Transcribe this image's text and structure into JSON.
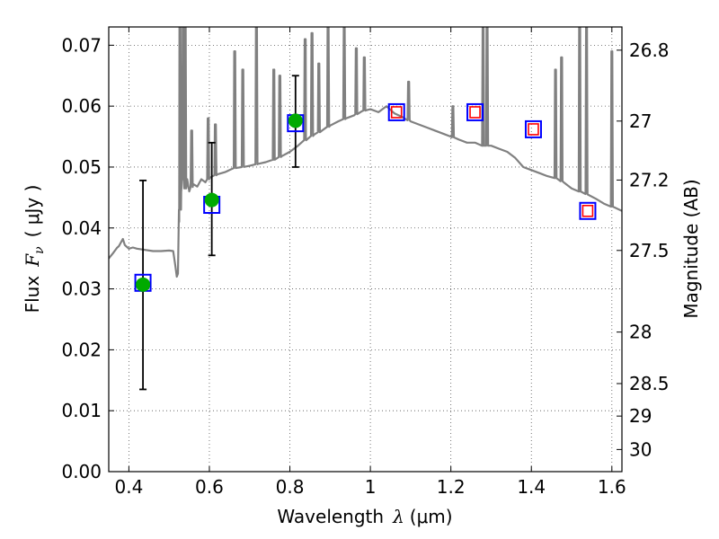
{
  "chart_data": {
    "type": "line",
    "title": "",
    "xlabel_text": "Wavelength",
    "xlabel_symbol": "λ",
    "xlabel_unit": "(μm)",
    "ylabel_text": "Flux",
    "ylabel_symbol": "F",
    "ylabel_subscript": "ν",
    "ylabel_unit": "( μJy )",
    "ylabel_right": "Magnitude (AB)",
    "xlim": [
      0.35,
      1.625
    ],
    "ylim": [
      0.0,
      0.073
    ],
    "grid": true,
    "x_ticks": [
      0.4,
      0.6,
      0.8,
      1.0,
      1.2,
      1.4,
      1.6
    ],
    "x_tick_labels": [
      "0.4",
      "0.6",
      "0.8",
      "1",
      "1.2",
      "1.4",
      "1.6"
    ],
    "y_ticks": [
      0.0,
      0.01,
      0.02,
      0.03,
      0.04,
      0.05,
      0.06,
      0.07
    ],
    "y_tick_labels": [
      "0.00",
      "0.01",
      "0.02",
      "0.03",
      "0.04",
      "0.05",
      "0.06",
      "0.07"
    ],
    "right_ticks": [
      {
        "value": 26.8,
        "label": "26.8"
      },
      {
        "value": 27.0,
        "label": "27"
      },
      {
        "value": 27.2,
        "label": "27.2"
      },
      {
        "value": 27.5,
        "label": "27.5"
      },
      {
        "value": 28.0,
        "label": "28"
      },
      {
        "value": 28.5,
        "label": "28.5"
      },
      {
        "value": 29.0,
        "label": "29"
      },
      {
        "value": 30.0,
        "label": "30"
      }
    ],
    "series": [
      {
        "name": "model-spectrum",
        "kind": "line",
        "color": "#808080",
        "points": [
          [
            0.35,
            0.035
          ],
          [
            0.36,
            0.0358
          ],
          [
            0.37,
            0.0367
          ],
          [
            0.375,
            0.037
          ],
          [
            0.385,
            0.0382
          ],
          [
            0.39,
            0.0372
          ],
          [
            0.4,
            0.0366
          ],
          [
            0.41,
            0.0368
          ],
          [
            0.42,
            0.0366
          ],
          [
            0.44,
            0.0364
          ],
          [
            0.46,
            0.0362
          ],
          [
            0.48,
            0.0362
          ],
          [
            0.5,
            0.0363
          ],
          [
            0.51,
            0.0362
          ],
          [
            0.515,
            0.034
          ],
          [
            0.519,
            0.032
          ],
          [
            0.522,
            0.0325
          ],
          [
            0.525,
            0.041
          ],
          [
            0.53,
            0.046
          ],
          [
            0.535,
            0.048
          ],
          [
            0.54,
            0.0465
          ],
          [
            0.545,
            0.048
          ],
          [
            0.55,
            0.046
          ],
          [
            0.56,
            0.0472
          ],
          [
            0.57,
            0.0468
          ],
          [
            0.58,
            0.048
          ],
          [
            0.59,
            0.0475
          ],
          [
            0.6,
            0.0482
          ],
          [
            0.62,
            0.0488
          ],
          [
            0.64,
            0.0492
          ],
          [
            0.66,
            0.0498
          ],
          [
            0.68,
            0.05
          ],
          [
            0.7,
            0.0502
          ],
          [
            0.72,
            0.0505
          ],
          [
            0.74,
            0.0508
          ],
          [
            0.76,
            0.0512
          ],
          [
            0.78,
            0.0518
          ],
          [
            0.8,
            0.0525
          ],
          [
            0.82,
            0.0535
          ],
          [
            0.84,
            0.0545
          ],
          [
            0.86,
            0.0553
          ],
          [
            0.88,
            0.056
          ],
          [
            0.9,
            0.0568
          ],
          [
            0.92,
            0.0575
          ],
          [
            0.94,
            0.058
          ],
          [
            0.96,
            0.0585
          ],
          [
            0.98,
            0.0592
          ],
          [
            1.0,
            0.0595
          ],
          [
            1.02,
            0.059
          ],
          [
            1.04,
            0.06
          ],
          [
            1.06,
            0.0588
          ],
          [
            1.08,
            0.0582
          ],
          [
            1.1,
            0.0575
          ],
          [
            1.12,
            0.057
          ],
          [
            1.14,
            0.0565
          ],
          [
            1.16,
            0.056
          ],
          [
            1.18,
            0.0555
          ],
          [
            1.2,
            0.055
          ],
          [
            1.22,
            0.0545
          ],
          [
            1.24,
            0.054
          ],
          [
            1.26,
            0.054
          ],
          [
            1.28,
            0.0535
          ],
          [
            1.3,
            0.0535
          ],
          [
            1.32,
            0.053
          ],
          [
            1.34,
            0.0525
          ],
          [
            1.36,
            0.0515
          ],
          [
            1.38,
            0.05
          ],
          [
            1.4,
            0.0495
          ],
          [
            1.42,
            0.049
          ],
          [
            1.44,
            0.0485
          ],
          [
            1.46,
            0.0482
          ],
          [
            1.48,
            0.0475
          ],
          [
            1.5,
            0.0465
          ],
          [
            1.52,
            0.046
          ],
          [
            1.54,
            0.0455
          ],
          [
            1.56,
            0.0448
          ],
          [
            1.58,
            0.044
          ],
          [
            1.6,
            0.0435
          ],
          [
            1.625,
            0.0428
          ]
        ]
      }
    ],
    "emission_lines": [
      {
        "x": 0.527,
        "peak": 0.073
      },
      {
        "x": 0.535,
        "peak": 0.073
      },
      {
        "x": 0.54,
        "peak": 0.073
      },
      {
        "x": 0.556,
        "peak": 0.056
      },
      {
        "x": 0.597,
        "peak": 0.058
      },
      {
        "x": 0.615,
        "peak": 0.057
      },
      {
        "x": 0.663,
        "peak": 0.069
      },
      {
        "x": 0.683,
        "peak": 0.066
      },
      {
        "x": 0.717,
        "peak": 0.073
      },
      {
        "x": 0.76,
        "peak": 0.066
      },
      {
        "x": 0.775,
        "peak": 0.065
      },
      {
        "x": 0.838,
        "peak": 0.071
      },
      {
        "x": 0.855,
        "peak": 0.072
      },
      {
        "x": 0.872,
        "peak": 0.067
      },
      {
        "x": 0.895,
        "peak": 0.073
      },
      {
        "x": 0.935,
        "peak": 0.073
      },
      {
        "x": 0.965,
        "peak": 0.0695
      },
      {
        "x": 0.985,
        "peak": 0.068
      },
      {
        "x": 1.095,
        "peak": 0.064
      },
      {
        "x": 1.205,
        "peak": 0.06
      },
      {
        "x": 1.28,
        "peak": 0.073
      },
      {
        "x": 1.29,
        "peak": 0.073
      },
      {
        "x": 1.46,
        "peak": 0.066
      },
      {
        "x": 1.475,
        "peak": 0.068
      },
      {
        "x": 1.52,
        "peak": 0.073
      },
      {
        "x": 1.537,
        "peak": 0.073
      },
      {
        "x": 1.6,
        "peak": 0.069
      }
    ],
    "model_photometry": {
      "name": "model-bands",
      "marker": "open-square",
      "color": "#0000ff",
      "points": [
        [
          0.435,
          0.031
        ],
        [
          0.606,
          0.0438
        ],
        [
          0.814,
          0.0572
        ],
        [
          1.065,
          0.059
        ],
        [
          1.26,
          0.059
        ],
        [
          1.405,
          0.0562
        ],
        [
          1.54,
          0.0428
        ]
      ]
    },
    "upper_limits": {
      "name": "upper-limit-bands",
      "marker": "open-square",
      "color": "#ff0000",
      "points": [
        [
          1.065,
          0.059
        ],
        [
          1.26,
          0.059
        ],
        [
          1.405,
          0.0562
        ],
        [
          1.54,
          0.0428
        ]
      ]
    },
    "observed": {
      "name": "observed-detections",
      "marker": "filled-circle",
      "color": "#00aa00",
      "points": [
        {
          "x": 0.435,
          "y": 0.0307,
          "err_low": 0.0135,
          "err_high": 0.0478
        },
        {
          "x": 0.606,
          "y": 0.0446,
          "err_low": 0.0355,
          "err_high": 0.054
        },
        {
          "x": 0.814,
          "y": 0.0576,
          "err_low": 0.05,
          "err_high": 0.065
        }
      ]
    }
  }
}
